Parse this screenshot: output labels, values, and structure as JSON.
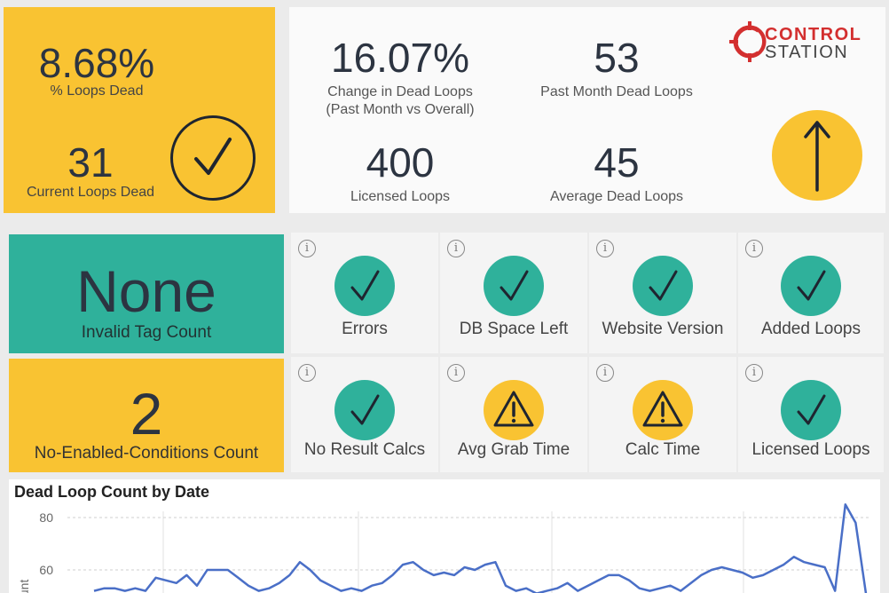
{
  "summary": {
    "pct_dead": "8.68%",
    "pct_dead_label": "% Loops Dead",
    "current_dead": "31",
    "current_dead_label": "Current Loops Dead"
  },
  "kpis": {
    "change": "16.07%",
    "change_label_1": "Change in Dead Loops",
    "change_label_2": "(Past Month vs Overall)",
    "past_month": "53",
    "past_month_label": "Past Month Dead Loops",
    "licensed": "400",
    "licensed_label": "Licensed Loops",
    "average": "45",
    "average_label": "Average Dead Loops"
  },
  "brand": {
    "line1": "CONTROL",
    "line2": "STATION",
    "color": "#d32f2f"
  },
  "invalid_tag": {
    "value": "None",
    "label": "Invalid Tag Count"
  },
  "no_enabled": {
    "value": "2",
    "label": "No-Enabled-Conditions Count"
  },
  "status_tiles": [
    {
      "label": "Errors",
      "status": "ok",
      "icon": "check-icon"
    },
    {
      "label": "DB Space Left",
      "status": "ok",
      "icon": "check-icon"
    },
    {
      "label": "Website Version",
      "status": "ok",
      "icon": "check-icon"
    },
    {
      "label": "Added Loops",
      "status": "ok",
      "icon": "check-icon"
    },
    {
      "label": "No Result Calcs",
      "status": "ok",
      "icon": "check-icon"
    },
    {
      "label": "Avg Grab Time",
      "status": "warn",
      "icon": "warning-icon"
    },
    {
      "label": "Calc Time",
      "status": "warn",
      "icon": "warning-icon"
    },
    {
      "label": "Licensed Loops",
      "status": "ok",
      "icon": "check-icon"
    }
  ],
  "info_glyph": "i",
  "colors": {
    "yellow": "#f9c332",
    "teal": "#2fb19b",
    "line": "#4a6fc7",
    "dark": "#2c3441"
  },
  "chart_data": {
    "type": "line",
    "title": "Dead Loop Count by Date",
    "ylabel": "Count",
    "yticks": [
      "80",
      "60"
    ],
    "ylim": [
      50,
      85
    ],
    "grid": true,
    "series": [
      {
        "values": [
          52,
          53,
          53,
          52,
          53,
          52,
          57,
          56,
          55,
          58,
          54,
          60,
          60,
          60,
          57,
          54,
          52,
          53,
          55,
          58,
          63,
          60,
          56,
          54,
          52,
          53,
          52,
          54,
          55,
          58,
          62,
          63,
          60,
          58,
          59,
          58,
          61,
          60,
          62,
          63,
          54,
          52,
          53,
          51,
          52,
          53,
          55,
          52,
          54,
          56,
          58,
          58,
          56,
          53,
          52,
          53,
          54,
          52,
          55,
          58,
          60,
          61,
          60,
          59,
          57,
          58,
          60,
          62,
          65,
          63,
          62,
          61,
          52,
          85,
          78,
          51
        ]
      }
    ]
  }
}
